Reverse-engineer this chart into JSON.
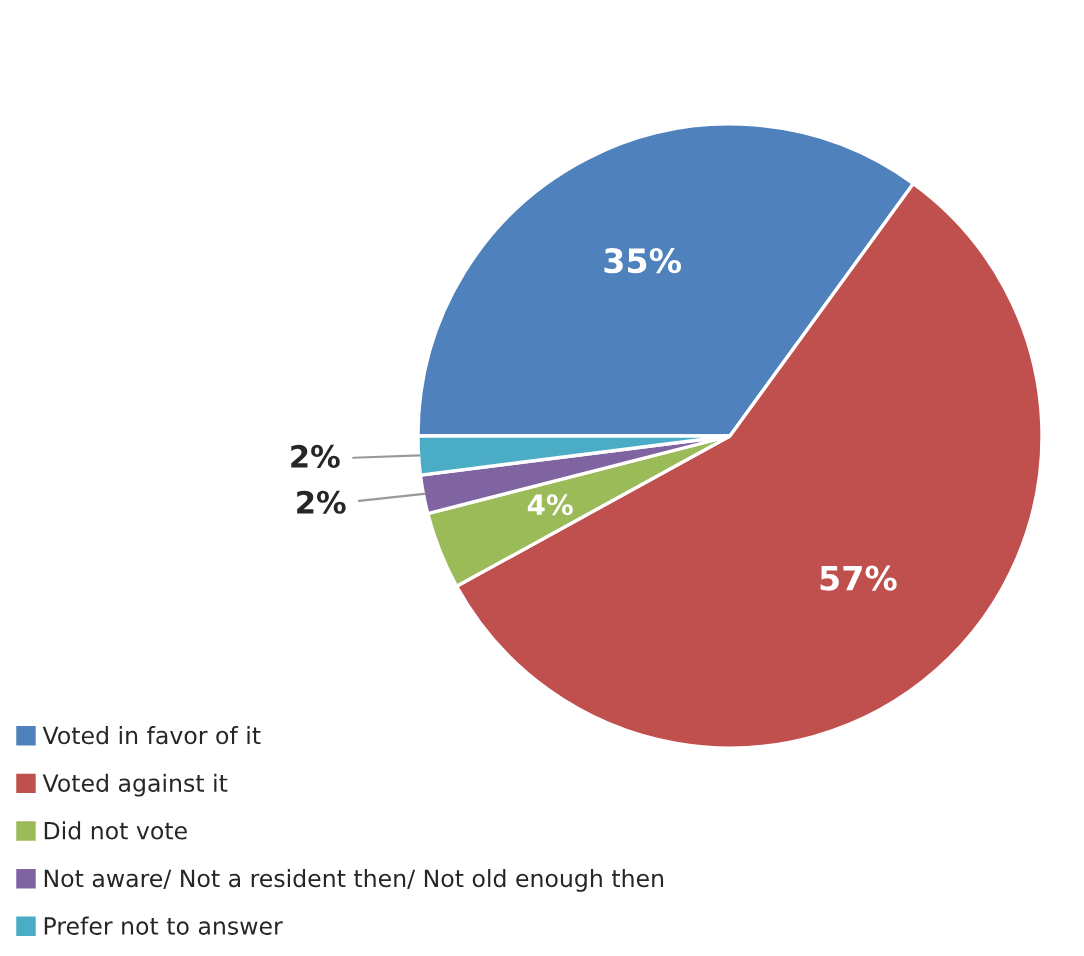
{
  "chart_data": {
    "type": "pie",
    "categories": [
      "Voted in favor of it",
      "Voted against it",
      "Did not vote",
      "Not aware/ Not a resident then/ Not old enough then",
      "Prefer not to answer"
    ],
    "values": [
      35,
      57,
      4,
      2,
      2
    ],
    "colors": [
      "#4f81bd",
      "#c0504d",
      "#9bbb59",
      "#8064a2",
      "#4bacc6"
    ],
    "value_labels": [
      "35%",
      "57%",
      "4%",
      "2%",
      "2%"
    ],
    "legend": "bottom left"
  }
}
